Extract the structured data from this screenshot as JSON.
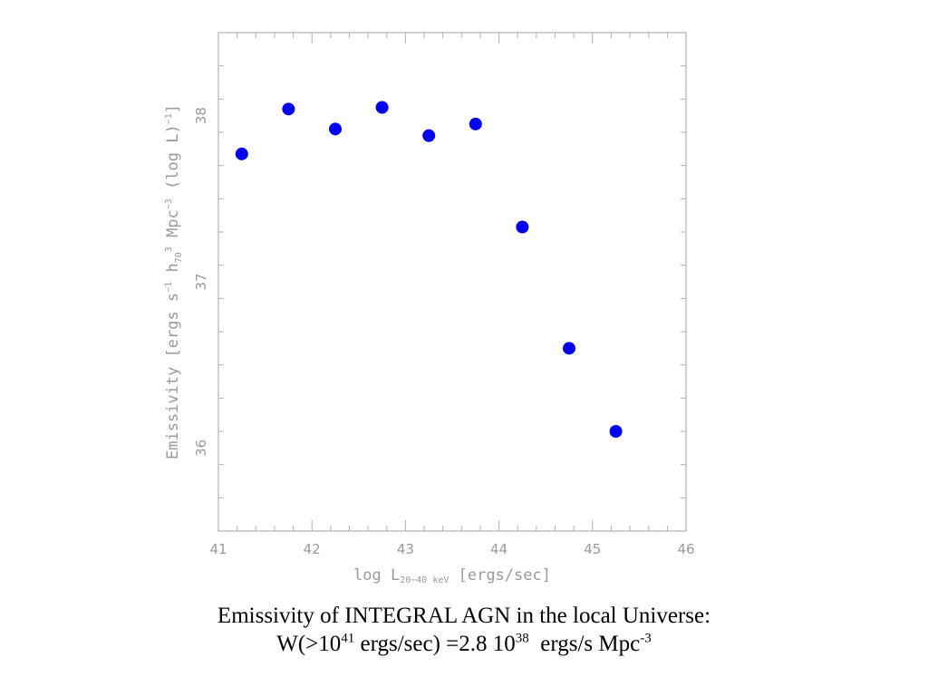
{
  "chart_data": {
    "type": "scatter",
    "x": [
      41.25,
      41.75,
      42.25,
      42.75,
      43.25,
      43.75,
      44.25,
      44.75,
      45.25
    ],
    "y": [
      37.77,
      38.04,
      37.92,
      38.05,
      37.88,
      37.95,
      37.33,
      36.6,
      36.1
    ],
    "xlim": [
      41,
      46
    ],
    "ylim": [
      35.5,
      38.5
    ],
    "xticks": [
      "41",
      "42",
      "43",
      "44",
      "45",
      "46"
    ],
    "yticks": [
      "36",
      "37",
      "38"
    ],
    "xlabel": {
      "pre": "log L",
      "sub": "20−40 keV",
      "post": " [ergs/sec]"
    },
    "ylabel": {
      "p1": "Emissivity [ergs s",
      "p1_sup": "−1",
      "p2": " h",
      "p2_sub": "70",
      "p2_sup": "3",
      "p3": " Mpc",
      "p3_sup": "−3",
      "p4": " (log L)",
      "p4_sup": "−1",
      "p5": "]"
    },
    "grid": false,
    "marker_color": "#0000ee"
  },
  "caption": {
    "line1": "Emissivity of INTEGRAL AGN in the local Universe:",
    "l2_a": "W(>10",
    "l2_sup1": "41",
    "l2_b": " ergs/sec) =2.8 10",
    "l2_sup2": "38",
    "l2_c": "  ergs/s Mpc",
    "l2_sup3": "-3"
  }
}
